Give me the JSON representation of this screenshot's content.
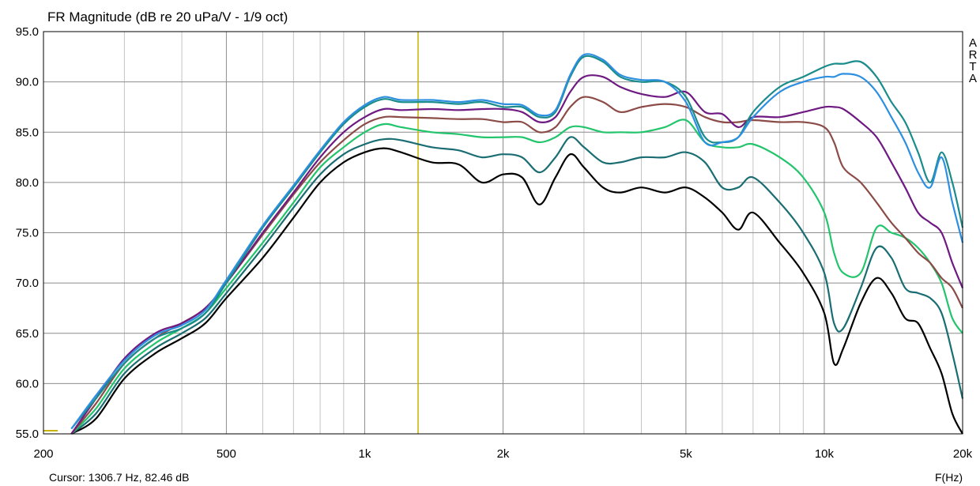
{
  "chart_data": {
    "type": "line",
    "title": "FR Magnitude (dB re 20 uPa/V - 1/9 oct)",
    "xlabel": "F(Hz)",
    "ylabel": "",
    "x_scale": "log",
    "xlim": [
      200,
      20000
    ],
    "ylim": [
      55,
      95
    ],
    "x_ticks": [
      200,
      500,
      1000,
      2000,
      5000,
      10000,
      20000
    ],
    "x_tick_labels": [
      "200",
      "500",
      "1k",
      "2k",
      "5k",
      "10k",
      "20k"
    ],
    "y_ticks": [
      55,
      60,
      65,
      70,
      75,
      80,
      85,
      90,
      95
    ],
    "y_tick_labels": [
      "55.0",
      "60.0",
      "65.0",
      "70.0",
      "75.0",
      "80.0",
      "85.0",
      "90.0",
      "95.0"
    ],
    "grid": true,
    "side_label": [
      "A",
      "R",
      "T",
      "A"
    ],
    "cursor": {
      "frequency": 1306.7,
      "level": 82.46,
      "text": "Cursor: 1306.7 Hz, 82.46 dB",
      "color": "#c8b400"
    },
    "series": [
      {
        "color": "#000000",
        "x": [
          230,
          260,
          300,
          350,
          400,
          450,
          500,
          600,
          700,
          800,
          900,
          1000,
          1100,
          1200,
          1400,
          1600,
          1800,
          2000,
          2200,
          2400,
          2600,
          2800,
          3000,
          3300,
          3600,
          4000,
          4500,
          5000,
          5500,
          6000,
          6500,
          7000,
          8000,
          9000,
          10000,
          10500,
          11000,
          12000,
          13000,
          14000,
          15000,
          16000,
          17000,
          18000,
          19000,
          20000
        ],
        "y": [
          53.5,
          56.5,
          60.5,
          63.0,
          64.5,
          66.0,
          68.5,
          72.5,
          76.5,
          80.0,
          82.0,
          83.0,
          83.4,
          83.0,
          82.0,
          81.8,
          80.0,
          80.8,
          80.5,
          77.8,
          80.5,
          82.8,
          81.5,
          79.5,
          79.0,
          79.5,
          79.0,
          79.5,
          78.5,
          77.0,
          75.3,
          77.0,
          74.0,
          71.0,
          67.0,
          62.0,
          63.5,
          68.0,
          70.5,
          69.0,
          66.5,
          66.0,
          63.5,
          61.0,
          57.0,
          54.0
        ]
      },
      {
        "color": "#1a6e73",
        "x": [
          230,
          260,
          300,
          350,
          400,
          450,
          500,
          600,
          700,
          800,
          900,
          1000,
          1100,
          1200,
          1400,
          1600,
          1800,
          2000,
          2200,
          2400,
          2600,
          2800,
          3000,
          3300,
          3600,
          4000,
          4500,
          5000,
          5500,
          6000,
          6500,
          7000,
          8000,
          9000,
          10000,
          10500,
          11000,
          12000,
          13000,
          14000,
          15000,
          16000,
          17000,
          18000,
          19000,
          20000
        ],
        "y": [
          54.0,
          57.0,
          61.0,
          63.5,
          65.0,
          66.5,
          69.0,
          73.5,
          77.5,
          80.8,
          82.8,
          83.8,
          84.3,
          84.2,
          83.5,
          83.2,
          82.5,
          82.8,
          82.5,
          81.0,
          82.5,
          84.5,
          83.5,
          82.0,
          82.0,
          82.5,
          82.5,
          83.0,
          82.0,
          79.5,
          79.5,
          80.5,
          78.0,
          75.0,
          71.0,
          66.0,
          65.5,
          69.5,
          73.5,
          72.5,
          69.5,
          69.0,
          68.5,
          67.0,
          63.0,
          58.5
        ]
      },
      {
        "color": "#22c46c",
        "x": [
          230,
          260,
          300,
          350,
          400,
          450,
          500,
          600,
          700,
          800,
          900,
          1000,
          1100,
          1200,
          1400,
          1600,
          1800,
          2000,
          2200,
          2400,
          2600,
          2800,
          3000,
          3300,
          3600,
          4000,
          4500,
          5000,
          5500,
          6000,
          6500,
          7000,
          8000,
          9000,
          10000,
          10500,
          11000,
          12000,
          13000,
          14000,
          15000,
          16000,
          17000,
          18000,
          19000,
          20000
        ],
        "y": [
          54.5,
          57.5,
          61.5,
          64.0,
          65.5,
          67.0,
          69.5,
          74.0,
          78.0,
          81.5,
          83.5,
          85.0,
          85.8,
          85.5,
          85.0,
          84.8,
          84.5,
          84.5,
          84.5,
          84.0,
          84.5,
          85.5,
          85.5,
          85.0,
          85.0,
          85.0,
          85.5,
          86.2,
          84.0,
          83.5,
          83.5,
          83.8,
          82.5,
          80.5,
          77.0,
          73.0,
          71.0,
          71.0,
          75.5,
          75.0,
          74.5,
          73.5,
          72.0,
          70.0,
          66.5,
          65.0
        ]
      },
      {
        "color": "#8b4c48",
        "x": [
          230,
          260,
          300,
          350,
          400,
          450,
          500,
          600,
          700,
          800,
          900,
          1000,
          1100,
          1200,
          1400,
          1600,
          1800,
          2000,
          2200,
          2400,
          2600,
          2800,
          3000,
          3300,
          3600,
          4000,
          4500,
          5000,
          5500,
          6000,
          6500,
          7000,
          8000,
          9000,
          10000,
          10500,
          11000,
          12000,
          13000,
          14000,
          15000,
          16000,
          17000,
          18000,
          19000,
          20000
        ],
        "y": [
          55.0,
          58.0,
          62.0,
          64.5,
          66.0,
          67.5,
          70.0,
          74.8,
          78.8,
          82.0,
          84.2,
          85.8,
          86.5,
          86.5,
          86.4,
          86.3,
          86.3,
          86.0,
          86.0,
          85.0,
          85.5,
          87.5,
          88.5,
          88.0,
          87.0,
          87.5,
          87.8,
          87.5,
          86.5,
          86.0,
          86.0,
          86.2,
          86.0,
          86.0,
          85.5,
          84.0,
          81.5,
          80.0,
          78.0,
          76.0,
          74.5,
          73.0,
          72.0,
          70.5,
          69.5,
          67.5
        ]
      },
      {
        "color": "#6e1a82",
        "x": [
          230,
          260,
          300,
          350,
          400,
          450,
          500,
          600,
          700,
          800,
          900,
          1000,
          1100,
          1200,
          1400,
          1600,
          1800,
          2000,
          2200,
          2400,
          2600,
          2800,
          3000,
          3300,
          3600,
          4000,
          4500,
          5000,
          5500,
          6000,
          6500,
          7000,
          8000,
          9000,
          10000,
          10500,
          11000,
          12000,
          13000,
          14000,
          15000,
          16000,
          17000,
          18000,
          19000,
          20000
        ],
        "y": [
          55.0,
          58.5,
          62.5,
          65.0,
          66.0,
          67.5,
          70.0,
          75.0,
          79.0,
          82.5,
          85.0,
          86.5,
          87.3,
          87.2,
          87.3,
          87.2,
          87.3,
          87.3,
          87.0,
          86.0,
          86.5,
          89.0,
          90.5,
          90.5,
          89.5,
          88.8,
          88.5,
          89.0,
          87.0,
          86.8,
          85.5,
          86.5,
          86.5,
          87.0,
          87.5,
          87.5,
          87.3,
          86.0,
          84.5,
          82.0,
          79.5,
          77.0,
          76.0,
          75.0,
          72.0,
          69.5
        ]
      },
      {
        "color": "#1a8c8c",
        "x": [
          230,
          260,
          300,
          350,
          400,
          450,
          500,
          600,
          700,
          800,
          900,
          1000,
          1100,
          1200,
          1400,
          1600,
          1800,
          2000,
          2200,
          2400,
          2600,
          2800,
          3000,
          3300,
          3600,
          4000,
          4500,
          5000,
          5500,
          6000,
          6500,
          7000,
          8000,
          9000,
          10000,
          10500,
          11000,
          12000,
          13000,
          14000,
          15000,
          16000,
          17000,
          18000,
          19000,
          20000
        ],
        "y": [
          55.5,
          58.5,
          62.0,
          64.5,
          65.5,
          67.0,
          70.0,
          75.5,
          79.5,
          83.0,
          85.8,
          87.5,
          88.3,
          88.0,
          88.0,
          87.8,
          88.0,
          87.5,
          87.5,
          86.5,
          87.0,
          90.5,
          92.5,
          92.0,
          90.5,
          90.0,
          90.0,
          88.5,
          84.5,
          84.0,
          84.5,
          87.0,
          89.5,
          90.5,
          91.5,
          91.8,
          91.8,
          92.0,
          90.5,
          88.0,
          86.0,
          83.0,
          80.0,
          83.0,
          80.0,
          75.5
        ]
      },
      {
        "color": "#2d8fe0",
        "x": [
          230,
          260,
          300,
          350,
          400,
          450,
          500,
          600,
          700,
          800,
          900,
          1000,
          1100,
          1200,
          1400,
          1600,
          1800,
          2000,
          2200,
          2400,
          2600,
          2800,
          3000,
          3300,
          3600,
          4000,
          4500,
          5000,
          5500,
          6000,
          6500,
          7000,
          8000,
          9000,
          10000,
          10500,
          11000,
          12000,
          13000,
          14000,
          15000,
          16000,
          17000,
          18000,
          19000,
          20000
        ],
        "y": [
          55.5,
          58.8,
          62.3,
          64.8,
          65.8,
          67.3,
          70.3,
          75.7,
          79.7,
          83.2,
          86.0,
          87.7,
          88.5,
          88.2,
          88.2,
          88.0,
          88.2,
          87.8,
          87.7,
          86.7,
          87.2,
          90.7,
          92.7,
          92.2,
          90.7,
          90.2,
          90.0,
          88.0,
          84.0,
          84.0,
          84.5,
          86.5,
          89.0,
          90.0,
          90.5,
          90.5,
          90.8,
          90.5,
          89.0,
          86.5,
          84.0,
          81.0,
          79.5,
          82.5,
          78.0,
          74.0
        ]
      }
    ]
  }
}
